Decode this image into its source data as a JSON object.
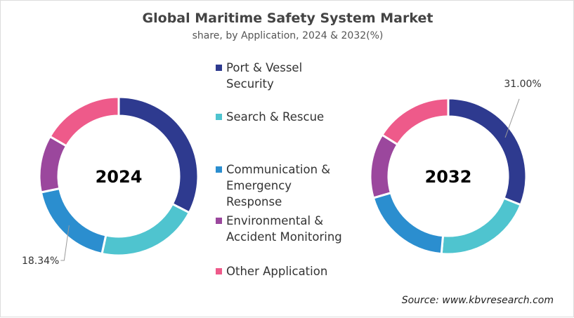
{
  "title": "Global Maritime Safety System Market",
  "subtitle": "share, by Application, 2024 & 2032(%)",
  "source": "Source: www.kbvresearch.com",
  "chart_data": [
    {
      "type": "pie",
      "variant": "donut",
      "center_label": "2024",
      "categories": [
        "Port & Vessel Security",
        "Search & Rescue",
        "Communication & Emergency Response",
        "Environmental & Accident Monitoring",
        "Other Application"
      ],
      "values": [
        32.6,
        20.8,
        18.34,
        11.6,
        16.66
      ],
      "data_labels": [
        {
          "category": "Communication & Emergency Response",
          "text": "18.34%"
        }
      ]
    },
    {
      "type": "pie",
      "variant": "donut",
      "center_label": "2032",
      "categories": [
        "Port & Vessel Security",
        "Search & Rescue",
        "Communication & Emergency Response",
        "Environmental & Accident Monitoring",
        "Other Application"
      ],
      "values": [
        31.0,
        20.4,
        19.1,
        13.4,
        16.1
      ],
      "data_labels": [
        {
          "category": "Port & Vessel Security",
          "text": "31.00%"
        }
      ]
    }
  ],
  "legend": {
    "placement": "center",
    "items": [
      {
        "lines": [
          "Port & Vessel",
          "Security"
        ],
        "color": "#2e3a8f"
      },
      {
        "lines": [
          "Search & Rescue"
        ],
        "color": "#4fc4cf"
      },
      {
        "lines": [
          "Communication &",
          "Emergency",
          "Response"
        ],
        "color": "#2b8ecf"
      },
      {
        "lines": [
          "Environmental &",
          "Accident Monitoring"
        ],
        "color": "#9b479d"
      },
      {
        "lines": [
          "Other Application"
        ],
        "color": "#ee5a8a"
      }
    ]
  }
}
